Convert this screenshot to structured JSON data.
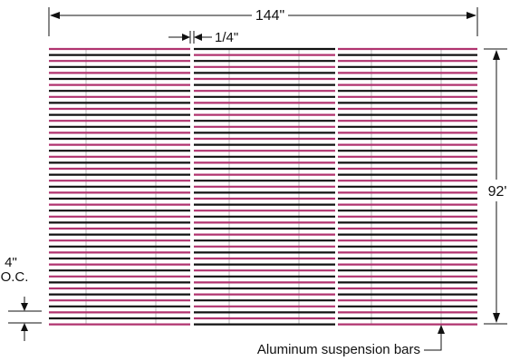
{
  "dimensions": {
    "overall_width": "144\"",
    "gap_width": "1/4\"",
    "overall_height": "92'",
    "spacing_line1": "4\"",
    "spacing_line2": "O.C."
  },
  "callouts": {
    "suspension_bars": "Aluminum suspension bars"
  },
  "colors": {
    "accent_strip": "#b0336f",
    "black_strip": "#111111",
    "suspension_bar": "#b8b8b8",
    "dimension_line": "#111111"
  }
}
